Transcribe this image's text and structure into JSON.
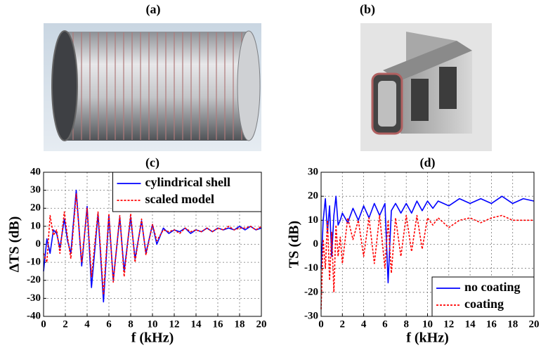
{
  "images": [
    {
      "label": "(a)"
    },
    {
      "label": "(b)"
    }
  ],
  "chart_data": [
    {
      "type": "line",
      "title": "(c)",
      "x_label": "f (kHz)",
      "y_label": "ΔTS (dB)",
      "x": [
        0,
        0.3,
        0.6,
        0.9,
        1.2,
        1.5,
        1.9,
        2.2,
        2.5,
        3.0,
        3.5,
        4.0,
        4.4,
        5.0,
        5.5,
        6.0,
        6.4,
        7.0,
        7.4,
        8.0,
        8.4,
        9.0,
        9.4,
        10.0,
        10.4,
        11,
        11.5,
        12,
        12.5,
        13,
        13.5,
        14,
        14.5,
        15,
        15.5,
        16,
        16.5,
        17,
        17.5,
        18,
        18.5,
        19,
        19.5,
        20
      ],
      "series": [
        {
          "name": "cylindrical shell",
          "color": "#0000ff",
          "dash": false,
          "values": [
            -15,
            3,
            -5,
            8,
            6,
            -2,
            14,
            2,
            -5,
            30,
            -12,
            21,
            -24,
            17,
            -32,
            16,
            -20,
            15,
            -15,
            15,
            -8,
            13,
            -5,
            11,
            0,
            9,
            6,
            8,
            7,
            9,
            6,
            8,
            7,
            9,
            7,
            9,
            8,
            9,
            8,
            10,
            8,
            10,
            8,
            9
          ]
        },
        {
          "name": "scaled model",
          "color": "#ff0000",
          "dash": true,
          "values": [
            -5,
            -10,
            16,
            5,
            8,
            -5,
            18,
            4,
            -8,
            28,
            -10,
            20,
            -18,
            18,
            -28,
            17,
            -21,
            16,
            -18,
            17,
            -10,
            14,
            -6,
            11,
            2,
            8,
            7,
            8,
            6,
            9,
            7,
            8,
            7,
            9,
            7,
            9,
            8,
            10,
            8,
            9,
            9,
            10,
            8,
            10
          ]
        }
      ],
      "xlim": [
        0,
        20
      ],
      "xticks": [
        0,
        2,
        4,
        6,
        8,
        10,
        12,
        14,
        16,
        18,
        20
      ],
      "ylim": [
        -40,
        40
      ],
      "yticks": [
        -40,
        -30,
        -20,
        -10,
        0,
        10,
        20,
        30,
        40
      ],
      "grid": true,
      "legend": "upper right"
    },
    {
      "type": "line",
      "title": "(d)",
      "x_label": "f (kHz)",
      "y_label": "TS (dB)",
      "x": [
        0,
        0.2,
        0.4,
        0.6,
        0.8,
        1.0,
        1.2,
        1.4,
        1.6,
        1.8,
        2.0,
        2.5,
        3.0,
        3.5,
        4.0,
        4.5,
        5.0,
        5.5,
        6.0,
        6.3,
        6.6,
        7.0,
        7.5,
        8.0,
        8.5,
        9.0,
        9.5,
        10,
        10.5,
        11,
        12,
        13,
        14,
        15,
        16,
        17,
        18,
        19,
        20
      ],
      "series": [
        {
          "name": "no coating",
          "color": "#0000ff",
          "dash": false,
          "values": [
            -10,
            10,
            19,
            5,
            16,
            -5,
            12,
            20,
            8,
            10,
            13,
            9,
            15,
            10,
            16,
            11,
            17,
            12,
            17,
            -16,
            14,
            17,
            13,
            17,
            13,
            18,
            14,
            18,
            15,
            18,
            16,
            19,
            17,
            19,
            17,
            20,
            17,
            19,
            18
          ]
        },
        {
          "name": "coating",
          "color": "#ff0000",
          "dash": true,
          "values": [
            -27,
            2,
            -10,
            10,
            -15,
            5,
            -20,
            8,
            -5,
            3,
            -8,
            11,
            2,
            10,
            -5,
            11,
            -8,
            12,
            -10,
            10,
            -12,
            11,
            -5,
            12,
            -3,
            12,
            -2,
            11,
            8,
            11,
            7,
            10,
            11,
            9,
            11,
            12,
            10,
            10,
            10
          ]
        }
      ],
      "xlim": [
        0,
        20
      ],
      "xticks": [
        0,
        2,
        4,
        6,
        8,
        10,
        12,
        14,
        16,
        18,
        20
      ],
      "ylim": [
        -30,
        30
      ],
      "yticks": [
        -30,
        -20,
        -10,
        0,
        10,
        20,
        30
      ],
      "grid": true,
      "legend": "lower right"
    }
  ]
}
